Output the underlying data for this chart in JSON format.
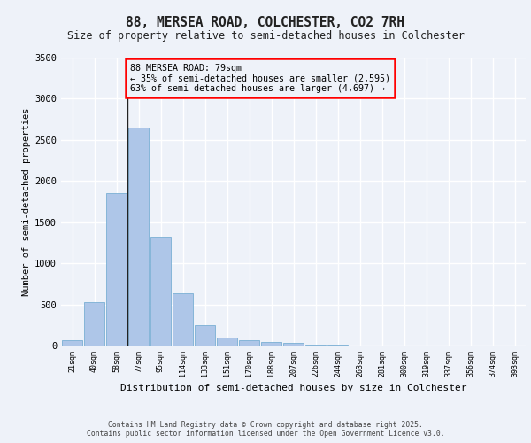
{
  "title_line1": "88, MERSEA ROAD, COLCHESTER, CO2 7RH",
  "title_line2": "Size of property relative to semi-detached houses in Colchester",
  "xlabel": "Distribution of semi-detached houses by size in Colchester",
  "ylabel": "Number of semi-detached properties",
  "categories": [
    "21sqm",
    "40sqm",
    "58sqm",
    "77sqm",
    "95sqm",
    "114sqm",
    "133sqm",
    "151sqm",
    "170sqm",
    "188sqm",
    "207sqm",
    "226sqm",
    "244sqm",
    "263sqm",
    "281sqm",
    "300sqm",
    "319sqm",
    "337sqm",
    "356sqm",
    "374sqm",
    "393sqm"
  ],
  "values": [
    60,
    525,
    1850,
    2650,
    1310,
    640,
    245,
    100,
    65,
    45,
    30,
    15,
    8,
    5,
    3,
    2,
    1,
    1,
    0,
    0,
    0
  ],
  "bar_color": "#aec6e8",
  "bar_edge_color": "#7aafd4",
  "annotation_line1": "88 MERSEA ROAD: 79sqm",
  "annotation_line2": "← 35% of semi-detached houses are smaller (2,595)",
  "annotation_line3": "63% of semi-detached houses are larger (4,697) →",
  "ylim": [
    0,
    3500
  ],
  "yticks": [
    0,
    500,
    1000,
    1500,
    2000,
    2500,
    3000,
    3500
  ],
  "bg_color": "#eef2f9",
  "grid_color": "#ffffff",
  "footer_line1": "Contains HM Land Registry data © Crown copyright and database right 2025.",
  "footer_line2": "Contains public sector information licensed under the Open Government Licence v3.0."
}
